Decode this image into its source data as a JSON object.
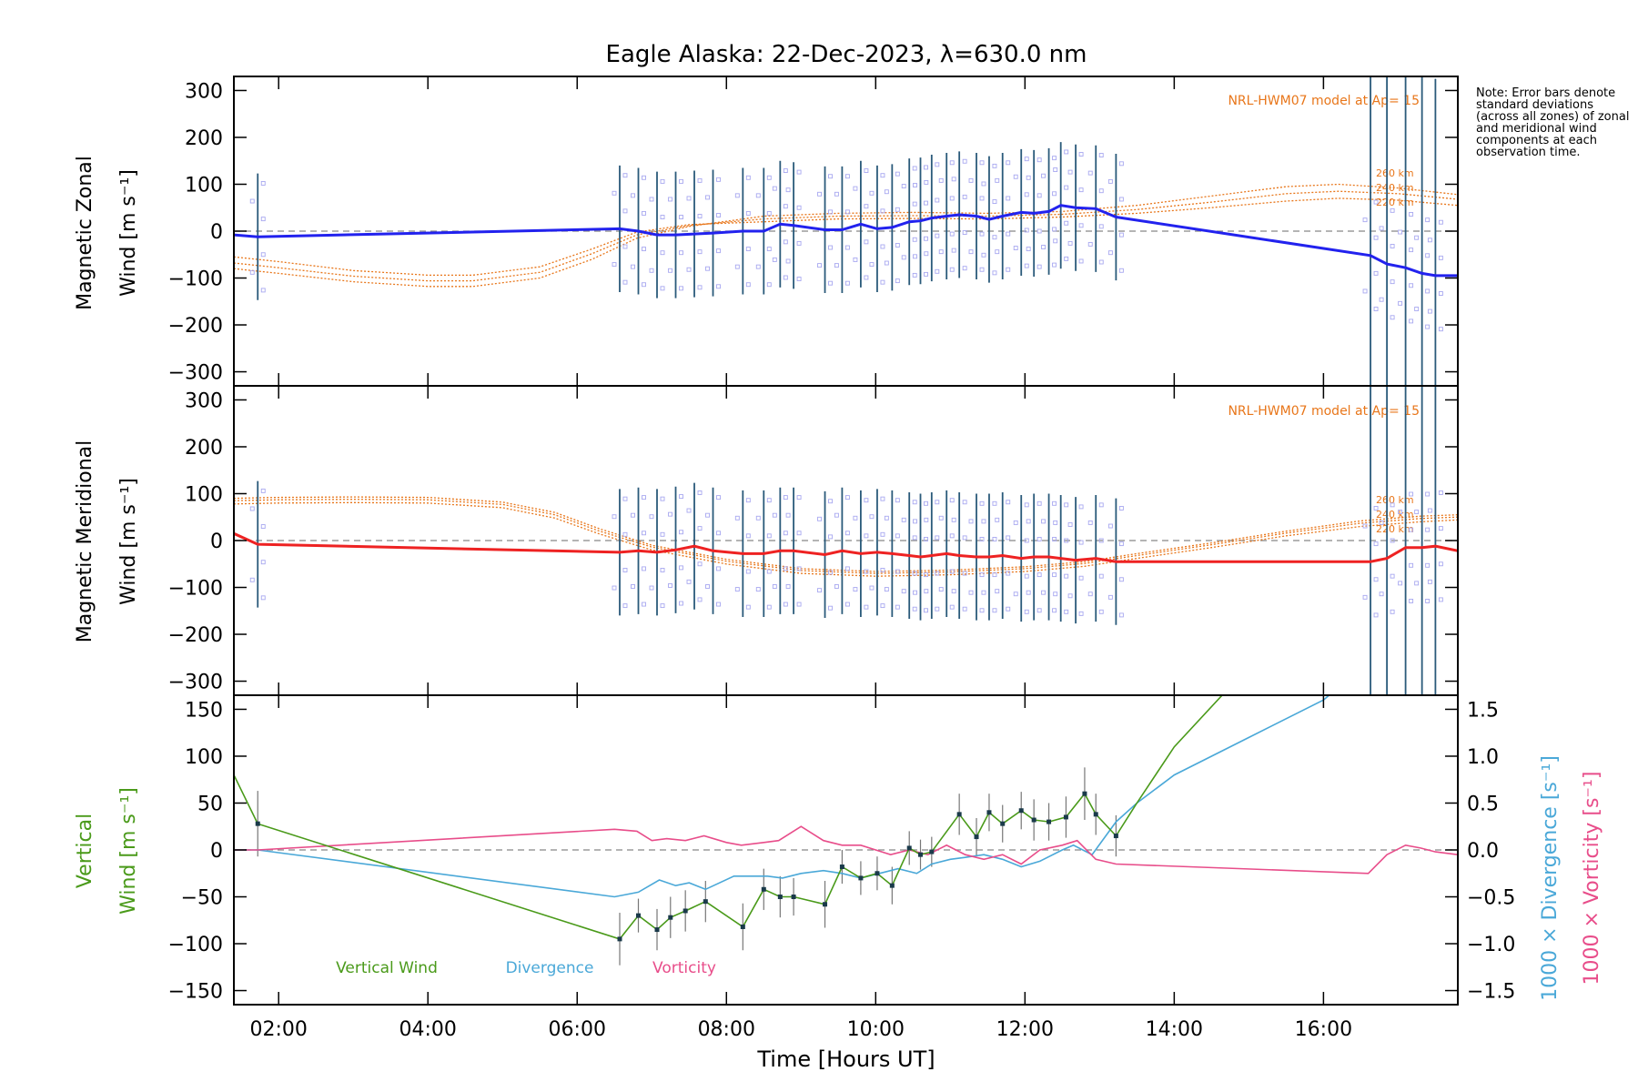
{
  "chart_data": {
    "type": "line",
    "title": "Eagle Alaska: 22-Dec-2023, λ=630.0 nm",
    "xlabel": "Time [Hours UT]",
    "xlim": [
      1.4,
      17.8
    ],
    "xticks": [
      2,
      4,
      6,
      8,
      10,
      12,
      14,
      16
    ],
    "xticklabels": [
      "02:00",
      "04:00",
      "06:00",
      "08:00",
      "10:00",
      "12:00",
      "14:00",
      "16:00"
    ],
    "note": "Note: Error bars denote standard deviations (across all zones) of zonal and meridional wind components at each observation time.",
    "panels": [
      {
        "name": "zonal",
        "ylabel_line1": "Magnetic Zonal",
        "ylabel_line2": "Wind [m s⁻¹]",
        "ylim": [
          -330,
          330
        ],
        "yticks": [
          -300,
          -200,
          -100,
          0,
          100,
          200,
          300
        ],
        "model_label": "NRL-HWM07 model at Ap= 15",
        "alt_labels": [
          "260 km",
          "240 km",
          "220 km"
        ],
        "model_color": "#e8761a",
        "series_color": "#2222ee",
        "model_curves": [
          {
            "x": [
              1.4,
              2,
              3,
              4,
              4.6,
              5.5,
              6.2,
              6.8,
              7.5,
              8.5,
              9.5,
              10.5,
              11.5,
              12.5,
              13.5,
              14.5,
              15.5,
              16.2,
              17,
              17.8
            ],
            "y": [
              -80,
              -90,
              -108,
              -118,
              -118,
              -100,
              -60,
              -15,
              10,
              32,
              38,
              40,
              38,
              42,
              55,
              75,
              95,
              100,
              92,
              78
            ]
          },
          {
            "x": [
              1.4,
              2,
              3,
              4,
              4.6,
              5.5,
              6.2,
              6.8,
              7.5,
              8.5,
              9.5,
              10.5,
              11.5,
              12.5,
              13.5,
              14.5,
              15.5,
              16.2,
              17,
              17.8
            ],
            "y": [
              -68,
              -78,
              -96,
              -106,
              -106,
              -88,
              -48,
              -8,
              12,
              26,
              32,
              33,
              32,
              36,
              46,
              62,
              80,
              85,
              80,
              68
            ]
          },
          {
            "x": [
              1.4,
              2,
              3,
              4,
              4.6,
              5.5,
              6.2,
              6.8,
              7.5,
              8.5,
              9.5,
              10.5,
              11.5,
              12.5,
              13.5,
              14.5,
              15.5,
              16.2,
              17,
              17.8
            ],
            "y": [
              -55,
              -65,
              -84,
              -94,
              -94,
              -76,
              -38,
              -2,
              14,
              20,
              26,
              27,
              26,
              30,
              38,
              50,
              64,
              70,
              66,
              55
            ]
          }
        ],
        "series": {
          "x": [
            1.4,
            1.72,
            6.57,
            6.82,
            7.07,
            7.32,
            7.57,
            7.82,
            8.22,
            8.5,
            8.72,
            8.9,
            9.32,
            9.55,
            9.8,
            10.02,
            10.22,
            10.45,
            10.6,
            10.75,
            10.95,
            11.12,
            11.35,
            11.52,
            11.7,
            11.95,
            12.12,
            12.32,
            12.48,
            12.68,
            12.95,
            13.22,
            16.63,
            16.85,
            17.1,
            17.32,
            17.5,
            17.8
          ],
          "y": [
            -8,
            -12,
            5,
            0,
            -8,
            -8,
            -6,
            -4,
            0,
            0,
            15,
            12,
            3,
            3,
            15,
            5,
            8,
            20,
            22,
            28,
            32,
            35,
            32,
            25,
            32,
            40,
            38,
            42,
            55,
            50,
            48,
            30,
            -52,
            -70,
            -78,
            -90,
            -95,
            -95
          ]
        }
      },
      {
        "name": "meridional",
        "ylabel_line1": "Magnetic Meridional",
        "ylabel_line2": "Wind [m s⁻¹]",
        "ylim": [
          -330,
          330
        ],
        "yticks": [
          -300,
          -200,
          -100,
          0,
          100,
          200,
          300
        ],
        "model_label": "NRL-HWM07 model at Ap= 15",
        "alt_labels": [
          "260 km",
          "240 km",
          "220 km"
        ],
        "model_color": "#e8761a",
        "series_color": "#ee2222",
        "model_curves": [
          {
            "x": [
              1.4,
              2,
              3,
              4,
              5,
              5.7,
              6.3,
              7,
              8,
              9,
              10,
              11,
              12,
              12.8,
              13.5,
              14.5,
              15.5,
              16.5,
              17.3,
              17.8
            ],
            "y": [
              90,
              92,
              93,
              92,
              82,
              60,
              25,
              -10,
              -40,
              -60,
              -66,
              -63,
              -56,
              -45,
              -28,
              -5,
              20,
              42,
              52,
              55
            ]
          },
          {
            "x": [
              1.4,
              2,
              3,
              4,
              5,
              5.7,
              6.3,
              7,
              8,
              9,
              10,
              11,
              12,
              12.8,
              13.5,
              14.5,
              15.5,
              16.5,
              17.3,
              17.8
            ],
            "y": [
              85,
              87,
              88,
              87,
              77,
              55,
              20,
              -14,
              -44,
              -64,
              -70,
              -67,
              -60,
              -49,
              -32,
              -9,
              16,
              37,
              47,
              50
            ]
          },
          {
            "x": [
              1.4,
              2,
              3,
              4,
              5,
              5.7,
              6.3,
              7,
              8,
              9,
              10,
              11,
              12,
              12.8,
              13.5,
              14.5,
              15.5,
              16.5,
              17.3,
              17.8
            ],
            "y": [
              78,
              80,
              81,
              80,
              70,
              48,
              14,
              -20,
              -50,
              -70,
              -76,
              -73,
              -66,
              -55,
              -38,
              -15,
              10,
              30,
              40,
              44
            ]
          }
        ],
        "series": {
          "x": [
            1.4,
            1.72,
            6.57,
            6.82,
            7.07,
            7.32,
            7.57,
            7.82,
            8.22,
            8.5,
            8.72,
            8.9,
            9.32,
            9.55,
            9.8,
            10.02,
            10.22,
            10.45,
            10.6,
            10.75,
            10.95,
            11.12,
            11.35,
            11.52,
            11.7,
            11.95,
            12.12,
            12.32,
            12.48,
            12.68,
            12.95,
            13.22,
            16.63,
            16.85,
            17.1,
            17.32,
            17.5,
            17.8
          ],
          "y": [
            15,
            -8,
            -25,
            -22,
            -25,
            -20,
            -12,
            -22,
            -28,
            -28,
            -22,
            -22,
            -30,
            -22,
            -28,
            -25,
            -28,
            -32,
            -35,
            -32,
            -28,
            -32,
            -35,
            -35,
            -32,
            -38,
            -35,
            -35,
            -38,
            -42,
            -38,
            -45,
            -45,
            -38,
            -15,
            -15,
            -12,
            -22
          ]
        }
      },
      {
        "name": "vertical",
        "ylabel_line1": "Vertical",
        "ylabel_line2": "Wind [m s⁻¹]",
        "ylim": [
          -165,
          165
        ],
        "yticks": [
          -150,
          -100,
          -50,
          0,
          50,
          100,
          150
        ],
        "right_axes": {
          "ylim": [
            -1.65,
            1.65
          ],
          "yticks": [
            -1.5,
            -1.0,
            -0.5,
            0.0,
            0.5,
            1.0,
            1.5
          ],
          "yticklabels": [
            "−1.5",
            "−1.0",
            "−0.5",
            "0.0",
            "0.5",
            "1.0",
            "1.5"
          ],
          "divergence_label": "1000 × Divergence [s⁻¹]",
          "vorticity_label": "1000 × Vorticity [s⁻¹]"
        },
        "legend": [
          "Vertical Wind",
          "Divergence",
          "Vorticity"
        ],
        "colors": {
          "vertical": "#4a9a1a",
          "divergence": "#4aa8d8",
          "vorticity": "#e84d8a"
        },
        "vertical_wind": {
          "x": [
            1.4,
            1.72,
            6.57,
            6.82,
            7.07,
            7.25,
            7.45,
            7.72,
            8.22,
            8.5,
            8.72,
            8.9,
            9.32,
            9.55,
            9.8,
            10.02,
            10.22,
            10.45,
            10.6,
            10.75,
            11.12,
            11.35,
            11.52,
            11.7,
            11.95,
            12.12,
            12.32,
            12.55,
            12.8,
            12.95,
            13.22,
            13.5,
            14.0,
            14.7
          ],
          "y": [
            80,
            28,
            -95,
            -70,
            -85,
            -72,
            -65,
            -55,
            -82,
            -42,
            -50,
            -50,
            -58,
            -18,
            -30,
            -25,
            -38,
            2,
            -5,
            -2,
            38,
            14,
            40,
            28,
            42,
            32,
            30,
            35,
            60,
            38,
            15,
            50,
            110,
            170
          ],
          "err": [
            0,
            35,
            28,
            18,
            22,
            22,
            22,
            22,
            25,
            22,
            22,
            20,
            25,
            18,
            18,
            18,
            20,
            18,
            16,
            16,
            22,
            20,
            20,
            20,
            20,
            22,
            20,
            22,
            28,
            22,
            22,
            0,
            0,
            0
          ]
        },
        "divergence": {
          "x": [
            1.4,
            1.72,
            6.5,
            6.82,
            7.1,
            7.32,
            7.5,
            7.72,
            8.1,
            8.3,
            8.55,
            8.75,
            9.0,
            9.3,
            9.55,
            9.8,
            10.05,
            10.3,
            10.55,
            10.75,
            11.0,
            11.2,
            11.45,
            11.7,
            11.95,
            12.2,
            12.5,
            12.65,
            12.9,
            13.22,
            13.5,
            14.0,
            15.0,
            16.0,
            16.6
          ],
          "y": [
            0.0,
            0.0,
            -0.5,
            -0.45,
            -0.32,
            -0.38,
            -0.35,
            -0.42,
            -0.28,
            -0.28,
            -0.28,
            -0.3,
            -0.25,
            -0.22,
            -0.25,
            -0.3,
            -0.25,
            -0.2,
            -0.25,
            -0.15,
            -0.1,
            -0.08,
            -0.05,
            -0.1,
            -0.18,
            -0.12,
            0.0,
            0.05,
            -0.05,
            0.3,
            0.5,
            0.8,
            1.2,
            1.6,
            2.0
          ]
        },
        "vorticity": {
          "x": [
            1.4,
            1.72,
            6.5,
            6.8,
            7.0,
            7.2,
            7.45,
            7.7,
            8.0,
            8.2,
            8.5,
            8.7,
            9.0,
            9.3,
            9.55,
            9.8,
            10.0,
            10.2,
            10.45,
            10.7,
            10.95,
            11.2,
            11.45,
            11.7,
            11.95,
            12.2,
            12.5,
            12.7,
            12.95,
            13.22,
            16.6,
            16.85,
            17.1,
            17.3,
            17.5,
            17.8
          ],
          "y": [
            0.0,
            0.0,
            0.22,
            0.2,
            0.1,
            0.12,
            0.1,
            0.15,
            0.08,
            0.05,
            0.08,
            0.1,
            0.25,
            0.1,
            0.05,
            0.05,
            0.0,
            -0.05,
            0.0,
            -0.05,
            0.05,
            -0.05,
            -0.1,
            -0.05,
            -0.15,
            0.0,
            0.05,
            0.1,
            -0.1,
            -0.15,
            -0.25,
            -0.05,
            0.05,
            0.02,
            -0.02,
            -0.05
          ]
        }
      }
    ]
  }
}
